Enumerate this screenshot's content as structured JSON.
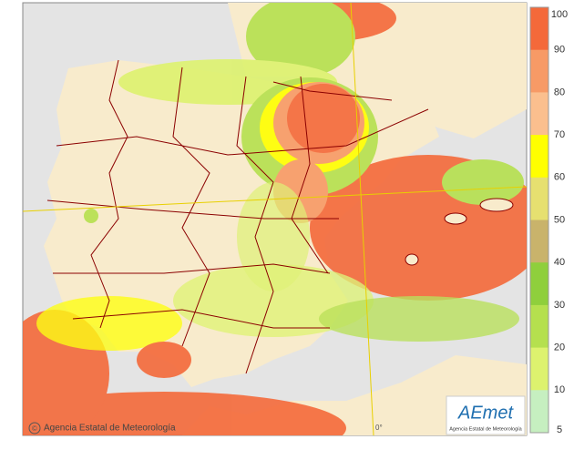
{
  "legend": {
    "labels": [
      100,
      90,
      80,
      70,
      60,
      50,
      40,
      30,
      20,
      10,
      5
    ],
    "colors": [
      "#f4693a",
      "#f79a66",
      "#fbbf8e",
      "#ffff00",
      "#e6e070",
      "#c9b36b",
      "#8fcf3c",
      "#b5e04e",
      "#ddf26e",
      "#c6efc0"
    ]
  },
  "meridian_label": "0°",
  "credit_symbol": "©",
  "credit": "Agencia Estatal de Meteorología",
  "logo": {
    "name": "AEmet",
    "subtitle": "Agencia Estatal de Meteorología"
  }
}
